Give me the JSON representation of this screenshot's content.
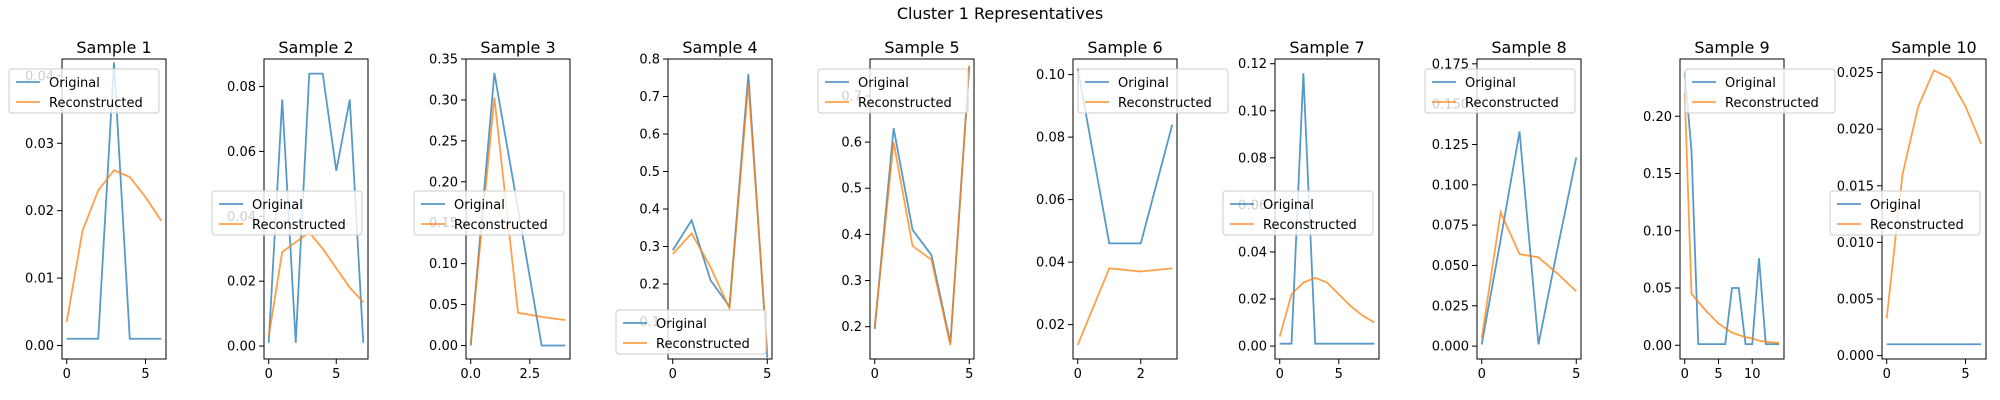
{
  "figure": {
    "suptitle": "Cluster 1 Representatives",
    "colors": {
      "original": "#1f77b4",
      "reconstructed": "#ff7f0e"
    }
  },
  "chart_data": [
    {
      "type": "line",
      "title": "Sample 1",
      "xlim": [
        -0.3,
        6.3
      ],
      "ylim": [
        -0.002,
        0.0425
      ],
      "xticks": [
        0,
        5
      ],
      "yticks": [
        0.0,
        0.01,
        0.02,
        0.03,
        0.04
      ],
      "ytick_labels": [
        "0.00",
        "0.01",
        "0.02",
        "0.03",
        "0.04"
      ],
      "legend": "upper-left",
      "series": [
        {
          "name": "Original",
          "x": [
            0,
            1,
            2,
            3,
            4,
            5,
            6
          ],
          "y": [
            0.001,
            0.001,
            0.001,
            0.042,
            0.001,
            0.001,
            0.001
          ]
        },
        {
          "name": "Reconstructed",
          "x": [
            0,
            1,
            2,
            3,
            4,
            5,
            6
          ],
          "y": [
            0.0035,
            0.017,
            0.023,
            0.026,
            0.025,
            0.022,
            0.0185
          ]
        }
      ]
    },
    {
      "type": "line",
      "title": "Sample 2",
      "xlim": [
        -0.35,
        7.35
      ],
      "ylim": [
        -0.004,
        0.0885
      ],
      "xticks": [
        0,
        5
      ],
      "yticks": [
        0.0,
        0.02,
        0.04,
        0.06,
        0.08
      ],
      "ytick_labels": [
        "0.00",
        "0.02",
        "0.04",
        "0.06",
        "0.08"
      ],
      "legend": "center-left",
      "series": [
        {
          "name": "Original",
          "x": [
            0,
            1,
            2,
            3,
            4,
            5,
            6,
            7
          ],
          "y": [
            0.001,
            0.076,
            0.001,
            0.084,
            0.084,
            0.054,
            0.076,
            0.001
          ]
        },
        {
          "name": "Reconstructed",
          "x": [
            0,
            1,
            2,
            3,
            4,
            5,
            6,
            7
          ],
          "y": [
            0.003,
            0.029,
            0.032,
            0.035,
            0.03,
            0.024,
            0.018,
            0.0135
          ]
        }
      ]
    },
    {
      "type": "line",
      "title": "Sample 3",
      "xlim": [
        -0.2,
        4.2
      ],
      "ylim": [
        -0.0165,
        0.35
      ],
      "xticks": [
        0,
        2.5
      ],
      "xtick_labels": [
        "0.0",
        "2.5"
      ],
      "yticks": [
        0.0,
        0.05,
        0.1,
        0.15,
        0.2,
        0.25,
        0.3,
        0.35
      ],
      "ytick_labels": [
        "0.00",
        "0.05",
        "0.10",
        "0.15",
        "0.20",
        "0.25",
        "0.30",
        "0.35"
      ],
      "legend": "center-left",
      "series": [
        {
          "name": "Original",
          "x": [
            0,
            1,
            2,
            3,
            4
          ],
          "y": [
            0.0,
            0.333,
            0.167,
            0.0,
            0.0
          ]
        },
        {
          "name": "Reconstructed",
          "x": [
            0,
            1,
            2,
            3,
            4
          ],
          "y": [
            0.003,
            0.303,
            0.04,
            0.035,
            0.031
          ]
        }
      ]
    },
    {
      "type": "line",
      "title": "Sample 4",
      "xlim": [
        -0.25,
        5.25
      ],
      "ylim": [
        0.0,
        0.8
      ],
      "xticks": [
        0,
        5
      ],
      "yticks": [
        0.1,
        0.2,
        0.3,
        0.4,
        0.5,
        0.6,
        0.7,
        0.8
      ],
      "ytick_labels": [
        "0.1",
        "0.2",
        "0.3",
        "0.4",
        "0.5",
        "0.6",
        "0.7",
        "0.8"
      ],
      "legend": "lower-left",
      "series": [
        {
          "name": "Original",
          "x": [
            0,
            1,
            2,
            3,
            4,
            5
          ],
          "y": [
            0.29,
            0.37,
            0.21,
            0.14,
            0.76,
            0.003
          ]
        },
        {
          "name": "Reconstructed",
          "x": [
            0,
            1,
            2,
            3,
            4,
            5
          ],
          "y": [
            0.28,
            0.335,
            0.245,
            0.135,
            0.735,
            0.02
          ]
        }
      ]
    },
    {
      "type": "line",
      "title": "Sample 5",
      "xlim": [
        -0.25,
        5.25
      ],
      "ylim": [
        0.13,
        0.78
      ],
      "xticks": [
        0,
        5
      ],
      "yticks": [
        0.2,
        0.3,
        0.4,
        0.5,
        0.6,
        0.7
      ],
      "ytick_labels": [
        "0.2",
        "0.3",
        "0.4",
        "0.5",
        "0.6",
        "0.7"
      ],
      "legend": "upper-left",
      "series": [
        {
          "name": "Original",
          "x": [
            0,
            1,
            2,
            3,
            4,
            5
          ],
          "y": [
            0.195,
            0.63,
            0.41,
            0.355,
            0.165,
            0.765
          ]
        },
        {
          "name": "Reconstructed",
          "x": [
            0,
            1,
            2,
            3,
            4,
            5
          ],
          "y": [
            0.2,
            0.6,
            0.375,
            0.345,
            0.16,
            0.765
          ]
        }
      ]
    },
    {
      "type": "line",
      "title": "Sample 6",
      "xlim": [
        -0.15,
        3.15
      ],
      "ylim": [
        0.009,
        0.105
      ],
      "xticks": [
        0,
        2
      ],
      "yticks": [
        0.02,
        0.04,
        0.06,
        0.08,
        0.1
      ],
      "ytick_labels": [
        "0.02",
        "0.04",
        "0.06",
        "0.08",
        "0.10"
      ],
      "legend": "upper-right",
      "series": [
        {
          "name": "Original",
          "x": [
            0,
            1,
            2,
            3
          ],
          "y": [
            0.102,
            0.046,
            0.046,
            0.084
          ]
        },
        {
          "name": "Reconstructed",
          "x": [
            0,
            1,
            2,
            3
          ],
          "y": [
            0.0135,
            0.038,
            0.037,
            0.038
          ]
        }
      ]
    },
    {
      "type": "line",
      "title": "Sample 7",
      "xlim": [
        -0.4,
        8.4
      ],
      "ylim": [
        -0.0055,
        0.122
      ],
      "xticks": [
        0,
        5
      ],
      "yticks": [
        0.0,
        0.02,
        0.04,
        0.06,
        0.08,
        0.1,
        0.12
      ],
      "ytick_labels": [
        "0.00",
        "0.02",
        "0.04",
        "0.06",
        "0.08",
        "0.10",
        "0.12"
      ],
      "legend": "center-left",
      "series": [
        {
          "name": "Original",
          "x": [
            0,
            1,
            2,
            3,
            4,
            5,
            6,
            7,
            8
          ],
          "y": [
            0.001,
            0.001,
            0.116,
            0.001,
            0.001,
            0.001,
            0.001,
            0.001,
            0.001
          ]
        },
        {
          "name": "Reconstructed",
          "x": [
            0,
            1,
            2,
            3,
            4,
            5,
            6,
            7,
            8
          ],
          "y": [
            0.004,
            0.022,
            0.027,
            0.029,
            0.027,
            0.022,
            0.017,
            0.013,
            0.01
          ]
        }
      ]
    },
    {
      "type": "line",
      "title": "Sample 8",
      "xlim": [
        -0.25,
        5.25
      ],
      "ylim": [
        -0.008,
        0.178
      ],
      "xticks": [
        0,
        5
      ],
      "yticks": [
        0.0,
        0.025,
        0.05,
        0.075,
        0.1,
        0.125,
        0.15,
        0.175
      ],
      "ytick_labels": [
        "0.000",
        "0.025",
        "0.050",
        "0.075",
        "0.100",
        "0.125",
        "0.150",
        "0.175"
      ],
      "legend": "upper-left",
      "series": [
        {
          "name": "Original",
          "x": [
            0,
            1,
            2,
            3,
            4,
            5
          ],
          "y": [
            0.001,
            0.066,
            0.133,
            0.001,
            0.06,
            0.117
          ]
        },
        {
          "name": "Reconstructed",
          "x": [
            0,
            1,
            2,
            3,
            4,
            5
          ],
          "y": [
            0.005,
            0.083,
            0.057,
            0.055,
            0.045,
            0.034
          ]
        }
      ]
    },
    {
      "type": "line",
      "title": "Sample 9",
      "xlim": [
        -0.7,
        14.7
      ],
      "ylim": [
        -0.012,
        0.25
      ],
      "xticks": [
        0,
        5,
        10
      ],
      "yticks": [
        0.0,
        0.05,
        0.1,
        0.15,
        0.2
      ],
      "ytick_labels": [
        "0.00",
        "0.05",
        "0.10",
        "0.15",
        "0.20"
      ],
      "legend": "upper-right",
      "series": [
        {
          "name": "Original",
          "x": [
            0,
            1,
            2,
            3,
            4,
            5,
            6,
            7,
            8,
            9,
            10,
            11,
            12,
            13,
            14
          ],
          "y": [
            0.238,
            0.17,
            0.001,
            0.001,
            0.001,
            0.001,
            0.001,
            0.05,
            0.05,
            0.001,
            0.001,
            0.076,
            0.001,
            0.001,
            0.001
          ]
        },
        {
          "name": "Reconstructed",
          "x": [
            0,
            1,
            2,
            3,
            4,
            5,
            6,
            7,
            8,
            9,
            10,
            11,
            12,
            13,
            14
          ],
          "y": [
            0.22,
            0.045,
            0.038,
            0.031,
            0.025,
            0.019,
            0.015,
            0.011,
            0.009,
            0.007,
            0.006,
            0.004,
            0.003,
            0.0025,
            0.002
          ]
        }
      ]
    },
    {
      "type": "line",
      "title": "Sample 10",
      "xlim": [
        -0.3,
        6.3
      ],
      "ylim": [
        -0.0003,
        0.0262
      ],
      "xticks": [
        0,
        5
      ],
      "yticks": [
        0.0,
        0.005,
        0.01,
        0.015,
        0.02,
        0.025
      ],
      "ytick_labels": [
        "0.000",
        "0.005",
        "0.010",
        "0.015",
        "0.020",
        "0.025"
      ],
      "legend": "center-left",
      "series": [
        {
          "name": "Original",
          "x": [
            0,
            1,
            2,
            3,
            4,
            5,
            6
          ],
          "y": [
            0.001,
            0.001,
            0.001,
            0.001,
            0.001,
            0.001,
            0.001
          ]
        },
        {
          "name": "Reconstructed",
          "x": [
            0,
            1,
            2,
            3,
            4,
            5,
            6
          ],
          "y": [
            0.0033,
            0.016,
            0.022,
            0.0252,
            0.0245,
            0.022,
            0.0187
          ]
        }
      ]
    }
  ]
}
